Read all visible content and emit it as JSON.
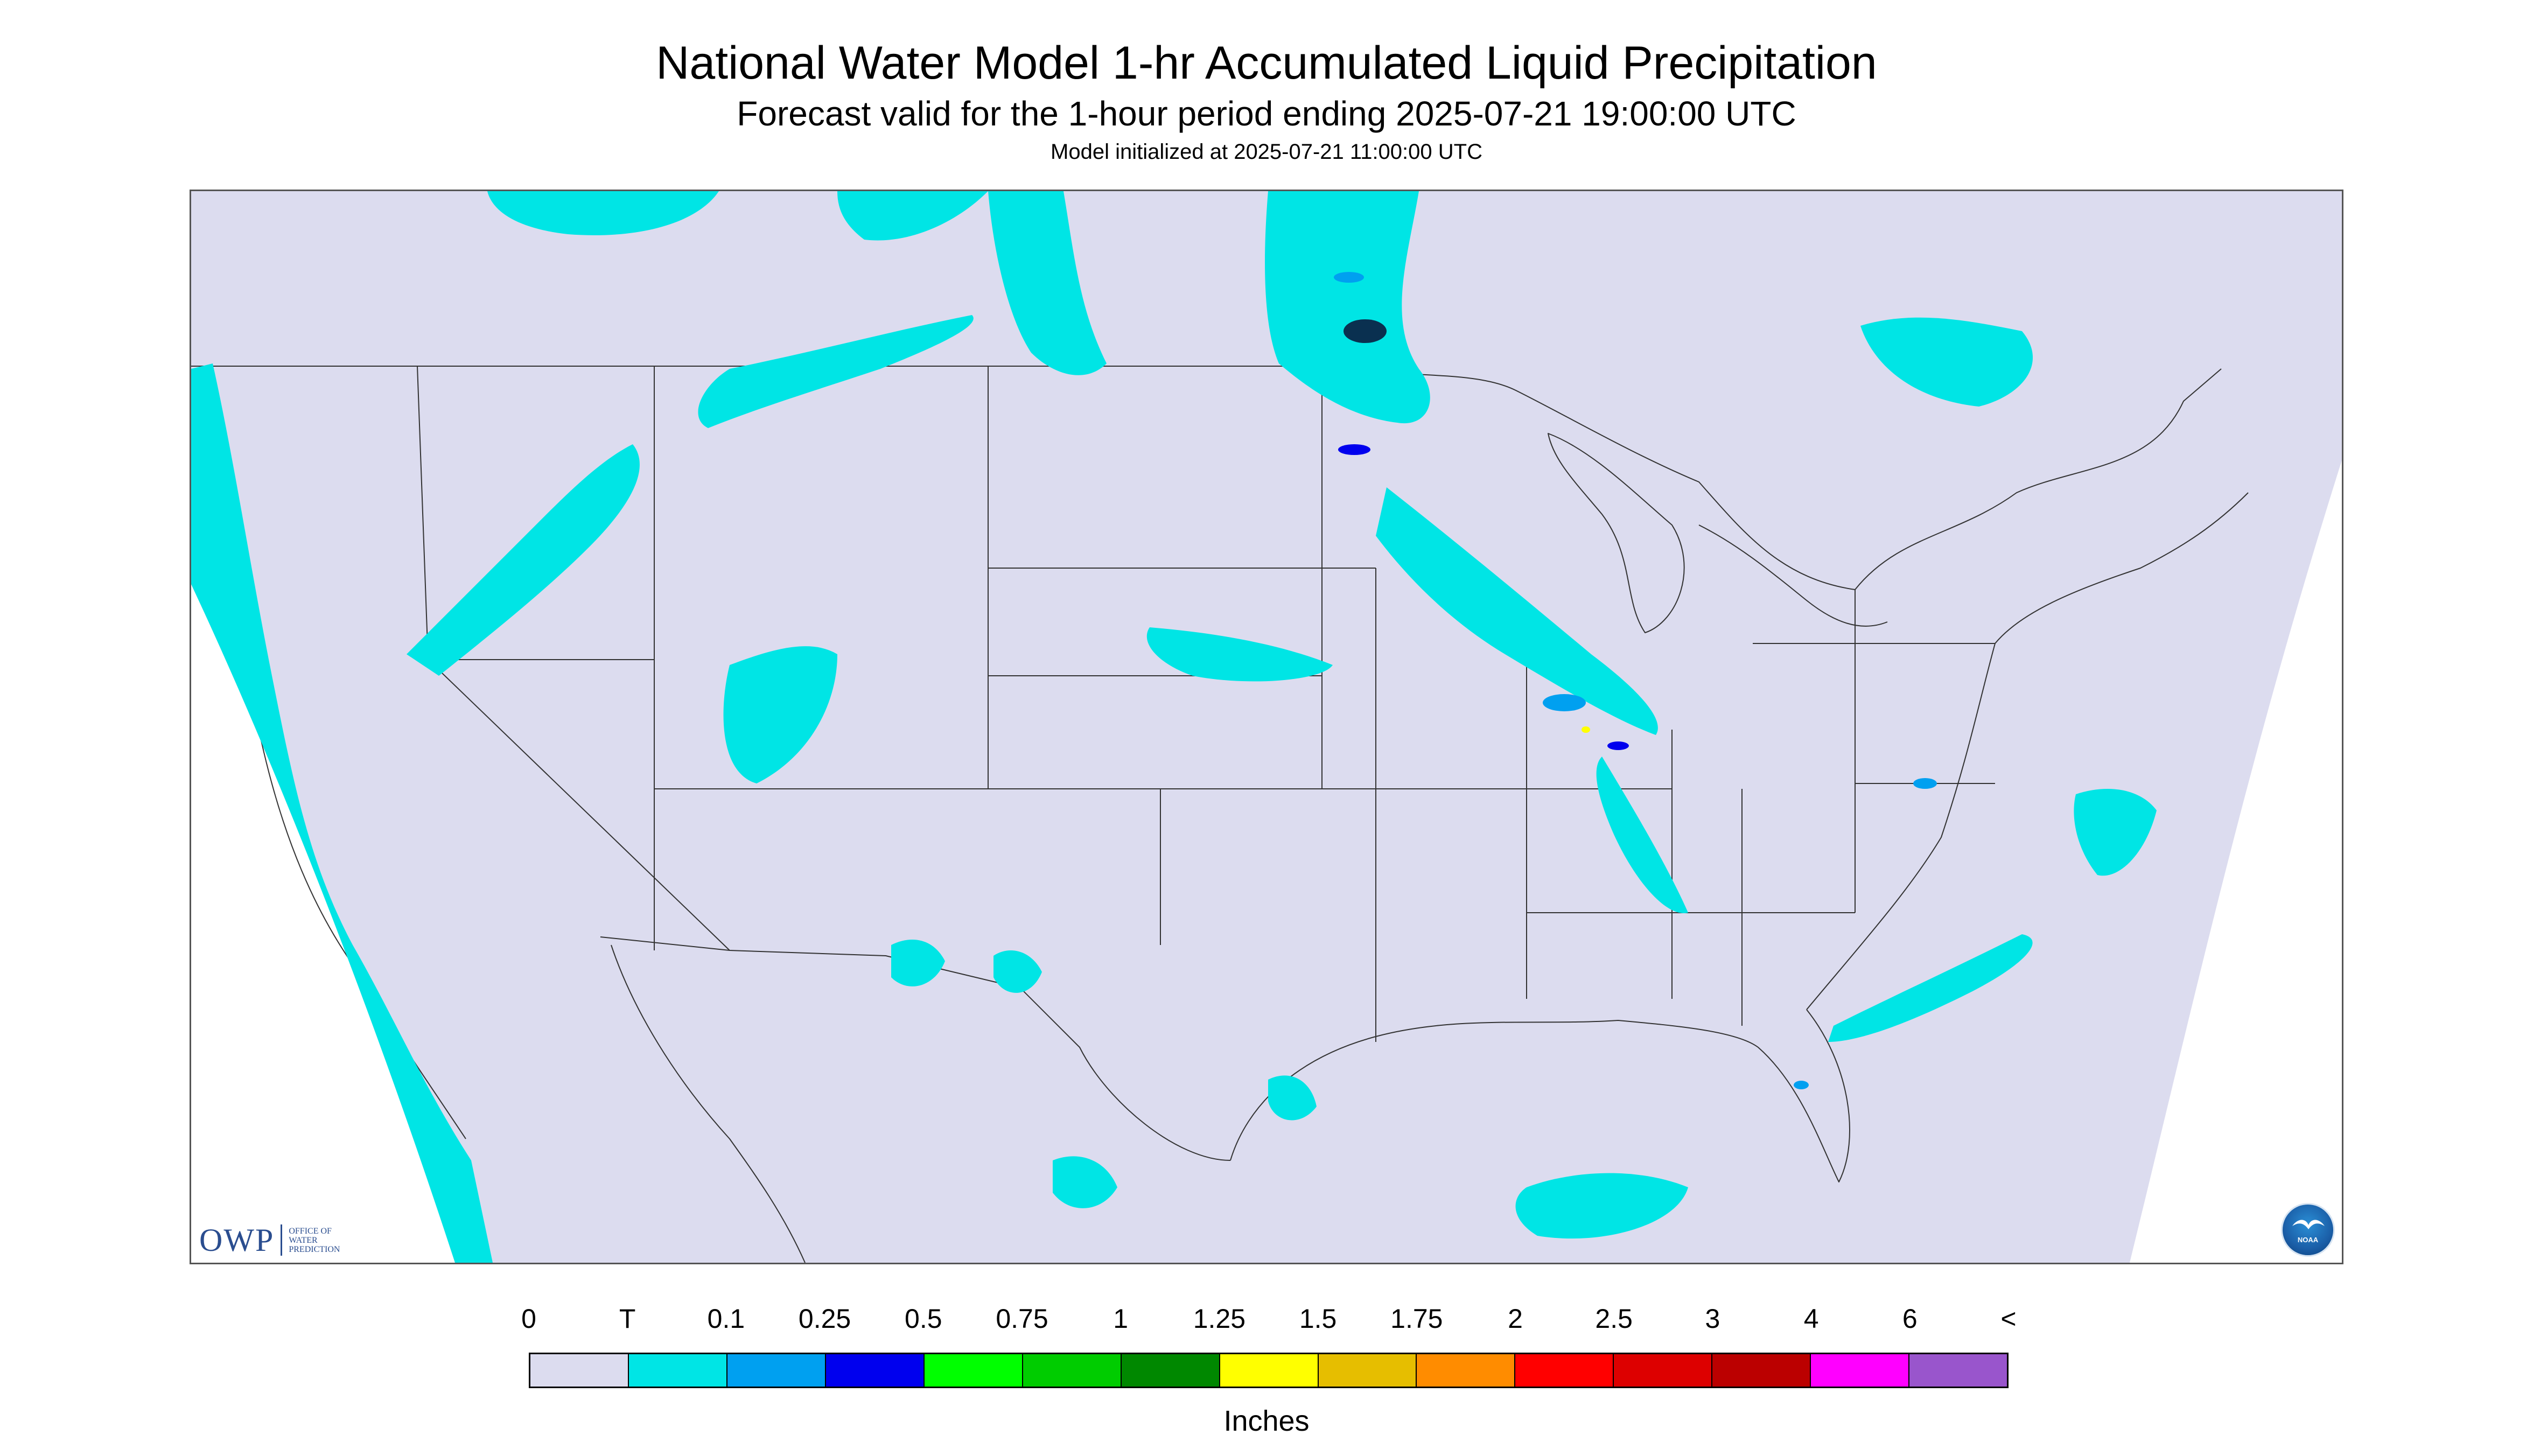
{
  "header": {
    "title": "National Water Model 1-hr Accumulated Liquid Precipitation",
    "subtitle": "Forecast valid for the 1-hour period ending 2025-07-21 19:00:00 UTC",
    "init_line": "Model initialized at 2025-07-21 11:00:00 UTC"
  },
  "map": {
    "background_color": "#dcdcef",
    "outside_color": "#ffffff",
    "precip_colors": {
      "trace": "#00e5e5",
      "light": "#00a0f0",
      "moderate": "#0000ee",
      "dark": "#0a3050",
      "high": "#ffff00"
    }
  },
  "logos": {
    "owp_mark": "OWP",
    "owp_text": "OFFICE OF WATER PREDICTION",
    "noaa_text": "NOAA"
  },
  "legend": {
    "ticks": [
      "0",
      "T",
      "0.1",
      "0.25",
      "0.5",
      "0.75",
      "1",
      "1.25",
      "1.5",
      "1.75",
      "2",
      "2.5",
      "3",
      "4",
      "6",
      "<"
    ],
    "colors": [
      "#dcdcef",
      "#00e5e5",
      "#00a0f0",
      "#0000ee",
      "#00ff00",
      "#00cc00",
      "#008800",
      "#ffff00",
      "#e6be00",
      "#ff8c00",
      "#ff0000",
      "#dd0000",
      "#bb0000",
      "#ff00ff",
      "#9955cc"
    ],
    "units": "Inches"
  }
}
